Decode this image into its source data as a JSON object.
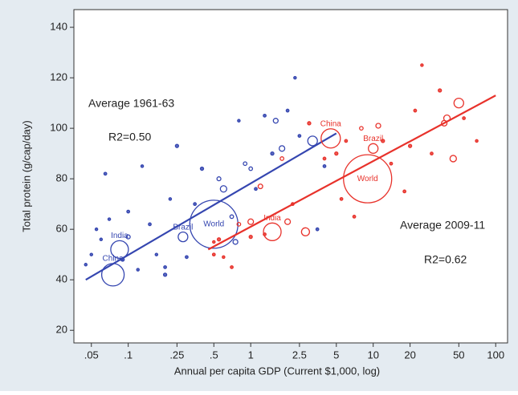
{
  "chart_data": {
    "type": "scatter",
    "x_label": "Annual per capita GDP (Current $1,000, log)",
    "y_label": "Total protein (g/cap/day)",
    "xlog": true,
    "xlim": [
      0.036,
      125
    ],
    "ylim": [
      15,
      147
    ],
    "xticks": [
      {
        "value": 0.05,
        "label": ".05"
      },
      {
        "value": 0.1,
        "label": ".1"
      },
      {
        "value": 0.25,
        "label": ".25"
      },
      {
        "value": 0.5,
        "label": ".5"
      },
      1,
      2.5,
      5,
      10,
      20,
      50,
      100
    ],
    "yticks": [
      20,
      40,
      60,
      80,
      100,
      120,
      140
    ],
    "annotations": [
      "Average 1961-63",
      "R2=0.50",
      "Average 2009-11",
      "R2=0.62"
    ],
    "series": [
      {
        "name": "1961-63",
        "color": "#3546b0",
        "x": [
          0.045,
          0.05,
          0.055,
          0.06,
          0.065,
          0.07,
          0.075,
          0.085,
          0.09,
          0.1,
          0.1,
          0.12,
          0.13,
          0.15,
          0.17,
          0.2,
          0.2,
          0.22,
          0.25,
          0.28,
          0.3,
          0.35,
          0.4,
          0.5,
          0.55,
          0.6,
          0.7,
          0.75,
          0.8,
          0.9,
          1,
          1.1,
          1.3,
          1.5,
          1.6,
          1.8,
          2,
          2.3,
          2.5,
          3.2,
          3.5,
          4
        ],
        "values": [
          46,
          50,
          60,
          56,
          82,
          64,
          42,
          52,
          48,
          57,
          67,
          44,
          85,
          62,
          50,
          45,
          42,
          72,
          93,
          57,
          49,
          70,
          84,
          62,
          80,
          76,
          65,
          55,
          103,
          86,
          84,
          76,
          105,
          90,
          103,
          92,
          107,
          120,
          97,
          95,
          60,
          85
        ],
        "sizes": [
          2,
          2,
          2,
          2,
          3,
          2,
          196,
          121,
          4,
          6,
          3,
          2,
          2,
          3,
          2,
          3,
          4,
          2,
          4,
          36,
          3,
          3,
          4,
          900,
          6,
          16,
          5,
          9,
          2,
          5,
          5,
          3,
          3,
          4,
          9,
          12,
          3,
          2,
          3,
          36,
          3,
          3
        ],
        "labels": [
          null,
          null,
          null,
          null,
          null,
          null,
          "China",
          "India",
          null,
          null,
          null,
          null,
          null,
          null,
          null,
          null,
          null,
          null,
          null,
          "Brazil",
          null,
          null,
          null,
          "World",
          null,
          null,
          null,
          null,
          null,
          null,
          null,
          null,
          null,
          null,
          null,
          null,
          null,
          null,
          null,
          null,
          null,
          null
        ],
        "fit_x": [
          0.045,
          5
        ],
        "fit_values": [
          40,
          98
        ]
      },
      {
        "name": "2009-11",
        "color": "#e8322b",
        "x": [
          0.5,
          0.5,
          0.55,
          0.6,
          0.7,
          0.8,
          1,
          1,
          1.2,
          1.3,
          1.5,
          1.8,
          2,
          2.2,
          2.8,
          3,
          4,
          4.5,
          5,
          5.5,
          6,
          7,
          8,
          9,
          10,
          11,
          12,
          14,
          18,
          20,
          22,
          25,
          30,
          35,
          38,
          40,
          45,
          50,
          55,
          70
        ],
        "values": [
          55,
          50,
          56,
          49,
          45,
          62,
          63,
          57,
          77,
          58,
          59,
          88,
          63,
          70,
          59,
          102,
          88,
          96,
          90,
          72,
          95,
          65,
          100,
          80,
          92,
          101,
          95,
          86,
          75,
          93,
          107,
          125,
          90,
          115,
          102,
          104,
          88,
          110,
          104,
          95
        ],
        "sizes": [
          2,
          3,
          4,
          2,
          3,
          5,
          12,
          4,
          8,
          3,
          121,
          5,
          12,
          3,
          25,
          4,
          3,
          144,
          4,
          3,
          3,
          3,
          5,
          900,
          36,
          9,
          4,
          3,
          3,
          4,
          3,
          2,
          3,
          4,
          12,
          16,
          16,
          36,
          3,
          2
        ],
        "labels": [
          null,
          null,
          null,
          null,
          null,
          null,
          null,
          null,
          null,
          null,
          "India",
          null,
          null,
          null,
          null,
          null,
          null,
          "China",
          null,
          null,
          null,
          null,
          null,
          "World",
          "Brazil",
          null,
          null,
          null,
          null,
          null,
          null,
          null,
          null,
          null,
          null,
          null,
          null,
          null,
          null,
          null
        ],
        "fit_x": [
          0.45,
          100
        ],
        "fit_values": [
          52,
          113
        ]
      }
    ]
  }
}
